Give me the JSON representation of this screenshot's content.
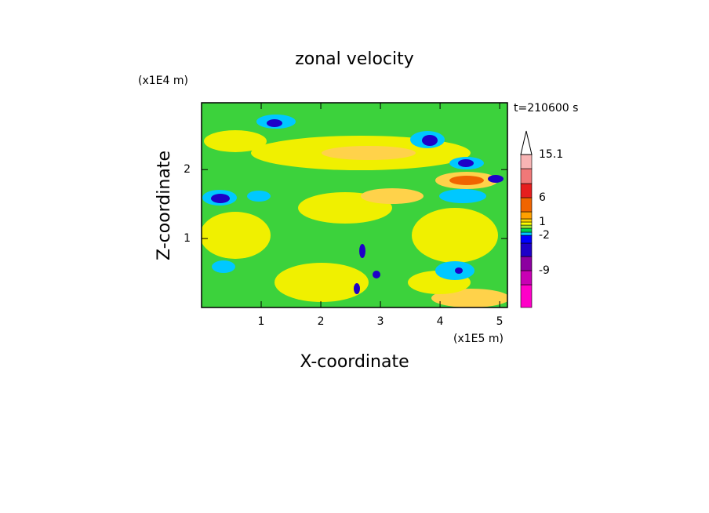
{
  "chart_data": {
    "type": "contour",
    "title": "zonal velocity",
    "x_label": "X-coordinate",
    "y_label": "Z-coordinate",
    "x_unit": "(x1E5 m)",
    "y_unit": "(x1E4 m)",
    "time_label": "t=210600 s",
    "xlim": [
      0,
      5.13
    ],
    "ylim": [
      0,
      2.97
    ],
    "xticks": [
      1,
      2,
      3,
      4,
      5
    ],
    "yticks": [
      1,
      2
    ],
    "colorbar": {
      "colors": [
        "#ff00c8",
        "#c800b4",
        "#8c00a0",
        "#1e00c8",
        "#0000ff",
        "#00c8ff",
        "#00d250",
        "#a0e632",
        "#ffff00",
        "#ffd200",
        "#ffa000",
        "#f06400",
        "#e61e1e",
        "#f07878",
        "#f8b4b4"
      ],
      "ticks": [
        15.1,
        6,
        1,
        -2,
        -9
      ]
    }
  }
}
